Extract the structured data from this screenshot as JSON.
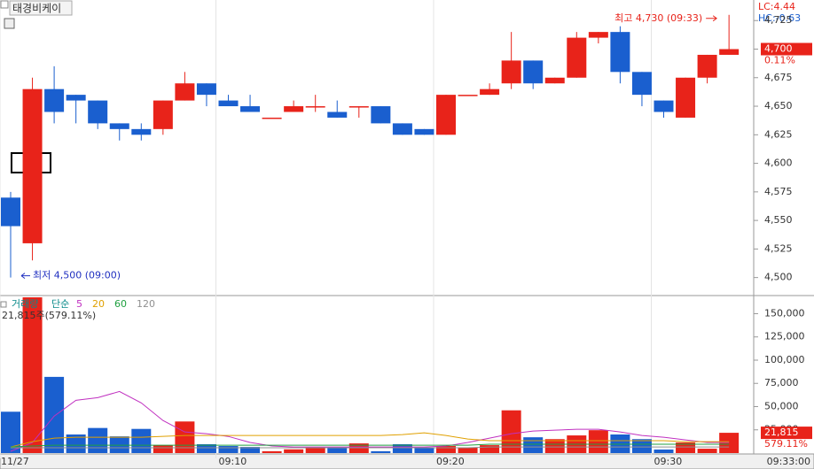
{
  "header": {
    "title": "태경비케이",
    "lc": "LC:4.44",
    "hc": "HC:-0.63",
    "cursor_time": "09:33:00"
  },
  "x": [
    "09:00",
    "09:01",
    "09:02",
    "09:03",
    "09:04",
    "09:05",
    "09:06",
    "09:07",
    "09:08",
    "09:09",
    "09:10",
    "09:11",
    "09:12",
    "09:13",
    "09:14",
    "09:15",
    "09:16",
    "09:17",
    "09:18",
    "09:19",
    "09:20",
    "09:21",
    "09:22",
    "09:23",
    "09:24",
    "09:25",
    "09:26",
    "09:27",
    "09:28",
    "09:29",
    "09:30",
    "09:31",
    "09:32",
    "09:33"
  ],
  "xticks": [
    {
      "value": "09:00",
      "label": "11/27"
    },
    "09:10",
    "09:20",
    "09:30"
  ],
  "chart_data": [
    {
      "type": "candlestick",
      "up_color": "#e8231a",
      "down_color": "#1a5fcf",
      "open": [
        4570,
        4530,
        4665,
        4660,
        4655,
        4635,
        4630,
        4630,
        4655,
        4670,
        4655,
        4650,
        4640,
        4645,
        4650,
        4645,
        4650,
        4650,
        4635,
        4630,
        4625,
        4660,
        4660,
        4670,
        4690,
        4670,
        4675,
        4710,
        4715,
        4680,
        4655,
        4640,
        4675,
        4695
      ],
      "high": [
        4575,
        4675,
        4685,
        4660,
        4655,
        4635,
        4635,
        4655,
        4680,
        4670,
        4660,
        4660,
        4640,
        4655,
        4660,
        4655,
        4650,
        4650,
        4635,
        4630,
        4660,
        4660,
        4670,
        4715,
        4690,
        4675,
        4715,
        4715,
        4720,
        4680,
        4655,
        4675,
        4695,
        4730
      ],
      "low": [
        4500,
        4515,
        4635,
        4635,
        4630,
        4620,
        4620,
        4625,
        4655,
        4650,
        4650,
        4645,
        4640,
        4645,
        4645,
        4640,
        4640,
        4635,
        4625,
        4625,
        4625,
        4660,
        4660,
        4665,
        4665,
        4670,
        4675,
        4705,
        4670,
        4650,
        4640,
        4640,
        4670,
        4695
      ],
      "close": [
        4545,
        4665,
        4645,
        4655,
        4635,
        4630,
        4625,
        4655,
        4670,
        4660,
        4650,
        4645,
        4640,
        4650,
        4650,
        4640,
        4650,
        4635,
        4625,
        4625,
        4660,
        4660,
        4665,
        4690,
        4670,
        4675,
        4710,
        4715,
        4680,
        4660,
        4645,
        4675,
        4695,
        4700
      ],
      "ylim": [
        4485,
        4743
      ],
      "yticks": [
        {
          "value": 4500,
          "label": "4,500"
        },
        {
          "value": 4525,
          "label": "4,525"
        },
        {
          "value": 4550,
          "label": "4,550"
        },
        {
          "value": 4575,
          "label": "4,575"
        },
        {
          "value": 4600,
          "label": "4,600"
        },
        {
          "value": 4625,
          "label": "4,625"
        },
        {
          "value": 4650,
          "label": "4,650"
        },
        {
          "value": 4675,
          "label": "4,675"
        },
        {
          "value": 4700,
          "label": "4,700"
        },
        {
          "value": 4725,
          "label": "4,725"
        }
      ],
      "last_price": {
        "value": 4700,
        "label": "4,700"
      },
      "change_label": "0.11%",
      "high_annotation": "최고 4,730 (09:33)",
      "low_annotation": "최저 4,500 (09:00)"
    },
    {
      "type": "volume",
      "title": "거래량",
      "ma_label": "단순",
      "summary": "21,815주(579.11%)",
      "values": [
        44500,
        170000,
        82000,
        20000,
        27000,
        18000,
        26000,
        8500,
        34000,
        9500,
        7600,
        6600,
        2000,
        4000,
        5700,
        6600,
        10400,
        2000,
        9500,
        5700,
        7600,
        5700,
        8500,
        46000,
        17000,
        15000,
        19000,
        24600,
        20000,
        15000,
        3800,
        11400,
        4700,
        21815
      ],
      "last_label": "21,815",
      "ratio_label": "579.11%",
      "ylim": [
        0,
        167600
      ],
      "yticks": [
        {
          "value": 25000,
          "label": "25,000"
        },
        {
          "value": 50000,
          "label": "50,000"
        },
        {
          "value": 75000,
          "label": "75,000"
        },
        {
          "value": 100000,
          "label": "100,000"
        },
        {
          "value": 125000,
          "label": "125,000"
        },
        {
          "value": 150000,
          "label": "150,000"
        }
      ],
      "series": [
        {
          "name": "5",
          "color": "#c030c0",
          "values": [
            1900,
            11400,
            39800,
            56800,
            59600,
            66300,
            54000,
            35000,
            22700,
            20800,
            17900,
            11400,
            7600,
            6600,
            6600,
            6600,
            6600,
            6600,
            6600,
            6600,
            7600,
            11400,
            16100,
            20800,
            23700,
            24600,
            25600,
            25600,
            22700,
            18900,
            17000,
            14200,
            11400,
            11400
          ]
        },
        {
          "name": "20",
          "color": "#e0a000",
          "values": [
            6600,
            12300,
            16100,
            17000,
            17000,
            17000,
            17000,
            18000,
            18900,
            18900,
            18900,
            18900,
            18900,
            18900,
            18900,
            18900,
            18900,
            18900,
            19900,
            21800,
            18900,
            15100,
            13300,
            13300,
            13300,
            13300,
            13300,
            13300,
            13300,
            13300,
            13300,
            12300,
            12300,
            12300
          ]
        },
        {
          "name": "60",
          "color": "#20a040",
          "values": [
            6600,
            7600,
            8500,
            8500,
            8500,
            8500,
            8500,
            8500,
            8500,
            8500,
            8500,
            8500,
            8500,
            8500,
            8500,
            8500,
            8500,
            8500,
            8500,
            8500,
            8500,
            8500,
            9500,
            9500,
            9500,
            9500,
            9500,
            9500,
            9500,
            9500,
            9500,
            9500,
            9500,
            9500
          ]
        },
        {
          "name": "120",
          "color": "#909090",
          "values": [
            5700,
            5700,
            5700,
            5700,
            5700,
            5700,
            5700,
            5700,
            5700,
            5700,
            5700,
            5700,
            5700,
            5700,
            5700,
            5700,
            5700,
            5700,
            5700,
            5700,
            5700,
            5700,
            6600,
            6600,
            6600,
            6600,
            6600,
            6600,
            6600,
            6600,
            6600,
            6600,
            6600,
            6600
          ]
        }
      ]
    }
  ]
}
